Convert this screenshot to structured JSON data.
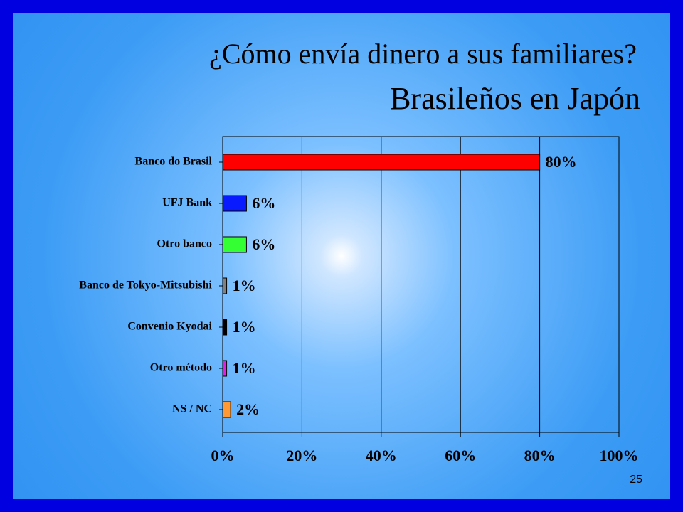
{
  "slide_number": "25",
  "chart_data": {
    "type": "hbar",
    "title": "¿Cómo envía dinero a sus familiares?",
    "subtitle": "Brasileños en Japón",
    "categories": [
      "Banco do Brasil",
      "UFJ Bank",
      "Otro banco",
      "Banco de Tokyo-Mitsubishi",
      "Convenio Kyodai",
      "Otro método",
      "NS / NC"
    ],
    "values": [
      80,
      6,
      6,
      1,
      1,
      1,
      2
    ],
    "value_labels": [
      "80%",
      "6%",
      "6%",
      "1%",
      "1%",
      "1%",
      "2%"
    ],
    "colors": [
      "#ff0000",
      "#0a1aff",
      "#33ff33",
      "#808080",
      "#000000",
      "#e020e0",
      "#ff9933"
    ],
    "xlim": [
      0,
      100
    ],
    "xticks": [
      {
        "value": 0,
        "label": "0%"
      },
      {
        "value": 20,
        "label": "20%"
      },
      {
        "value": 40,
        "label": "40%"
      },
      {
        "value": 60,
        "label": "60%"
      },
      {
        "value": 80,
        "label": "80%"
      },
      {
        "value": 100,
        "label": "100%"
      }
    ],
    "grid": true
  }
}
